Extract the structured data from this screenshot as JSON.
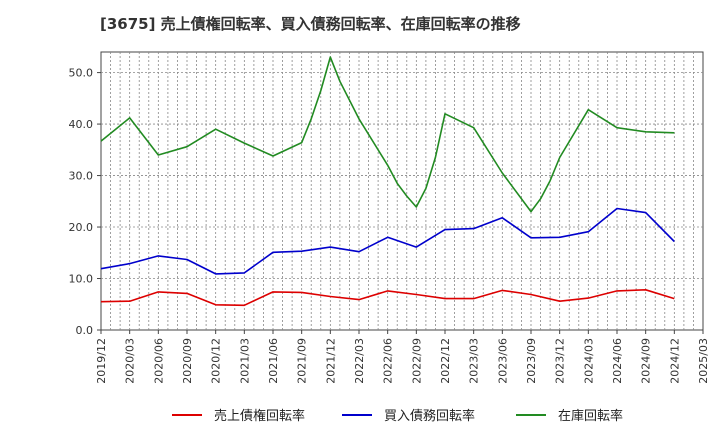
{
  "chart_data": {
    "type": "line",
    "title": "[3675]  売上債権回転率、買入債務回転率、在庫回転率の推移",
    "xlabel": "",
    "ylabel": "",
    "ylim": [
      0,
      54
    ],
    "y_ticks": [
      0,
      10,
      20,
      30,
      40,
      50
    ],
    "y_tick_labels": [
      "0.0",
      "10.0",
      "20.0",
      "30.0",
      "40.0",
      "50.0"
    ],
    "x_tick_labels": [
      "2019/12",
      "2020/03",
      "2020/06",
      "2020/09",
      "2020/12",
      "2021/03",
      "2021/06",
      "2021/09",
      "2021/12",
      "2022/03",
      "2022/06",
      "2022/09",
      "2022/12",
      "2023/03",
      "2023/06",
      "2023/09",
      "2023/12",
      "2024/03",
      "2024/06",
      "2024/09",
      "2024/12",
      "2025/03"
    ],
    "grid": true,
    "legend_position": "bottom",
    "series": [
      {
        "name": "売上債権回転率",
        "color": "#dd0000",
        "points": [
          [
            "2019/12",
            5.5
          ],
          [
            "2020/03",
            5.6
          ],
          [
            "2020/06",
            7.4
          ],
          [
            "2020/09",
            7.1
          ],
          [
            "2020/12",
            4.9
          ],
          [
            "2021/03",
            4.8
          ],
          [
            "2021/06",
            7.4
          ],
          [
            "2021/09",
            7.3
          ],
          [
            "2021/12",
            6.5
          ],
          [
            "2022/03",
            5.9
          ],
          [
            "2022/06",
            7.6
          ],
          [
            "2022/09",
            6.9
          ],
          [
            "2022/12",
            6.1
          ],
          [
            "2023/03",
            6.1
          ],
          [
            "2023/06",
            7.7
          ],
          [
            "2023/09",
            6.9
          ],
          [
            "2023/12",
            5.6
          ],
          [
            "2024/03",
            6.2
          ],
          [
            "2024/06",
            7.6
          ],
          [
            "2024/09",
            7.8
          ],
          [
            "2024/12",
            6.1
          ]
        ]
      },
      {
        "name": "買入債務回転率",
        "color": "#0000cc",
        "points": [
          [
            "2019/12",
            11.9
          ],
          [
            "2020/03",
            12.9
          ],
          [
            "2020/06",
            14.4
          ],
          [
            "2020/09",
            13.7
          ],
          [
            "2020/12",
            10.9
          ],
          [
            "2021/03",
            11.1
          ],
          [
            "2021/06",
            15.1
          ],
          [
            "2021/09",
            15.3
          ],
          [
            "2021/12",
            16.1
          ],
          [
            "2022/03",
            15.2
          ],
          [
            "2022/06",
            18.0
          ],
          [
            "2022/09",
            16.1
          ],
          [
            "2022/12",
            19.5
          ],
          [
            "2023/03",
            19.7
          ],
          [
            "2023/06",
            21.8
          ],
          [
            "2023/09",
            17.9
          ],
          [
            "2023/12",
            18.0
          ],
          [
            "2024/03",
            19.1
          ],
          [
            "2024/06",
            23.6
          ],
          [
            "2024/09",
            22.8
          ],
          [
            "2024/12",
            17.2
          ]
        ]
      },
      {
        "name": "在庫回転率",
        "color": "#228b22",
        "points": [
          [
            "2019/12",
            36.7
          ],
          [
            "2020/03",
            41.2
          ],
          [
            "2020/06",
            34.0
          ],
          [
            "2020/09",
            35.6
          ],
          [
            "2020/12",
            39.0
          ],
          [
            "2021/03",
            36.3
          ],
          [
            "2021/06",
            33.8
          ],
          [
            "2021/09",
            36.4
          ],
          [
            "2021/10",
            41.0
          ],
          [
            "2021/11",
            46.5
          ],
          [
            "2021/12",
            53.0
          ],
          [
            "2022/01",
            48.3
          ],
          [
            "2022/03",
            41.0
          ],
          [
            "2022/06",
            32.0
          ],
          [
            "2022/07",
            28.5
          ],
          [
            "2022/08",
            26.0
          ],
          [
            "2022/09",
            23.9
          ],
          [
            "2022/10",
            27.5
          ],
          [
            "2022/11",
            33.5
          ],
          [
            "2022/12",
            42.0
          ],
          [
            "2023/03",
            39.3
          ],
          [
            "2023/06",
            30.5
          ],
          [
            "2023/09",
            23.0
          ],
          [
            "2023/10",
            25.5
          ],
          [
            "2023/11",
            29.0
          ],
          [
            "2023/12",
            33.5
          ],
          [
            "2024/03",
            42.8
          ],
          [
            "2024/06",
            39.3
          ],
          [
            "2024/09",
            38.5
          ],
          [
            "2024/12",
            38.3
          ]
        ]
      }
    ]
  }
}
